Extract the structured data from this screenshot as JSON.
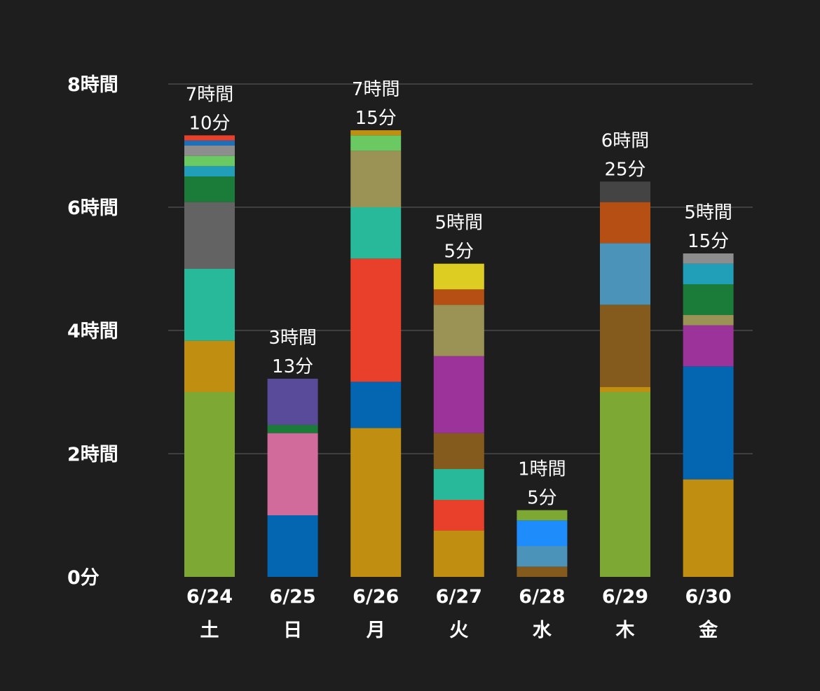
{
  "chart_data": {
    "type": "bar",
    "stacked": true,
    "unit": "minutes",
    "ylim": [
      0,
      480
    ],
    "y_ticks": [
      {
        "value": 0,
        "label": "0分"
      },
      {
        "value": 120,
        "label": "2時間"
      },
      {
        "value": 240,
        "label": "4時間"
      },
      {
        "value": 360,
        "label": "6時間"
      },
      {
        "value": 480,
        "label": "8時間"
      }
    ],
    "grid": true,
    "legend": "none",
    "categories": [
      {
        "date": "6/24",
        "day": "土",
        "total_label": [
          "7時間",
          "10分"
        ],
        "total": 430,
        "segments": [
          {
            "value": 180,
            "color": "#7ea834"
          },
          {
            "value": 50,
            "color": "#c08f12"
          },
          {
            "value": 70,
            "color": "#27b99a"
          },
          {
            "value": 65,
            "color": "#636363"
          },
          {
            "value": 25,
            "color": "#1b7b38"
          },
          {
            "value": 10,
            "color": "#219fb9"
          },
          {
            "value": 10,
            "color": "#6bc963"
          },
          {
            "value": 10,
            "color": "#8d8d8d"
          },
          {
            "value": 5,
            "color": "#1e6fb8"
          },
          {
            "value": 5,
            "color": "#e8402a"
          }
        ]
      },
      {
        "date": "6/25",
        "day": "日",
        "total_label": [
          "3時間",
          "13分"
        ],
        "total": 193,
        "segments": [
          {
            "value": 60,
            "color": "#0465b0"
          },
          {
            "value": 80,
            "color": "#d06b9b"
          },
          {
            "value": 8,
            "color": "#1b7b38"
          },
          {
            "value": 45,
            "color": "#5a4a9a"
          }
        ]
      },
      {
        "date": "6/26",
        "day": "月",
        "total_label": [
          "7時間",
          "15分"
        ],
        "total": 435,
        "segments": [
          {
            "value": 145,
            "color": "#c08f12"
          },
          {
            "value": 45,
            "color": "#0465b0"
          },
          {
            "value": 120,
            "color": "#e8402a"
          },
          {
            "value": 50,
            "color": "#27b99a"
          },
          {
            "value": 55,
            "color": "#9a9355"
          },
          {
            "value": 15,
            "color": "#6bc963"
          },
          {
            "value": 5,
            "color": "#c08f12"
          }
        ]
      },
      {
        "date": "6/27",
        "day": "火",
        "total_label": [
          "5時間",
          "5分"
        ],
        "total": 305,
        "segments": [
          {
            "value": 45,
            "color": "#c08f12"
          },
          {
            "value": 30,
            "color": "#e8402a"
          },
          {
            "value": 30,
            "color": "#27b99a"
          },
          {
            "value": 35,
            "color": "#845a1d"
          },
          {
            "value": 75,
            "color": "#9b339b"
          },
          {
            "value": 50,
            "color": "#9a9355"
          },
          {
            "value": 15,
            "color": "#b64f13"
          },
          {
            "value": 25,
            "color": "#ddcc22"
          }
        ]
      },
      {
        "date": "6/28",
        "day": "水",
        "total_label": [
          "1時間",
          "5分"
        ],
        "total": 65,
        "segments": [
          {
            "value": 10,
            "color": "#845a1d"
          },
          {
            "value": 20,
            "color": "#4c93b9"
          },
          {
            "value": 25,
            "color": "#1e8dfb"
          },
          {
            "value": 10,
            "color": "#7ea834"
          }
        ]
      },
      {
        "date": "6/29",
        "day": "木",
        "total_label": [
          "6時間",
          "25分"
        ],
        "total": 385,
        "segments": [
          {
            "value": 180,
            "color": "#7ea834"
          },
          {
            "value": 5,
            "color": "#c08f12"
          },
          {
            "value": 80,
            "color": "#845a1d"
          },
          {
            "value": 60,
            "color": "#4c93b9"
          },
          {
            "value": 40,
            "color": "#b64f13"
          },
          {
            "value": 20,
            "color": "#444444"
          }
        ]
      },
      {
        "date": "6/30",
        "day": "金",
        "total_label": [
          "5時間",
          "15分"
        ],
        "total": 315,
        "segments": [
          {
            "value": 95,
            "color": "#c08f12"
          },
          {
            "value": 110,
            "color": "#0465b0"
          },
          {
            "value": 40,
            "color": "#9b339b"
          },
          {
            "value": 10,
            "color": "#9a9355"
          },
          {
            "value": 30,
            "color": "#1b7b38"
          },
          {
            "value": 20,
            "color": "#219fb9"
          },
          {
            "value": 10,
            "color": "#8d8d8d"
          }
        ]
      }
    ]
  },
  "colors": {
    "background": "#1e1e1e",
    "grid": "#4a4a4a",
    "text": "#ffffff"
  }
}
